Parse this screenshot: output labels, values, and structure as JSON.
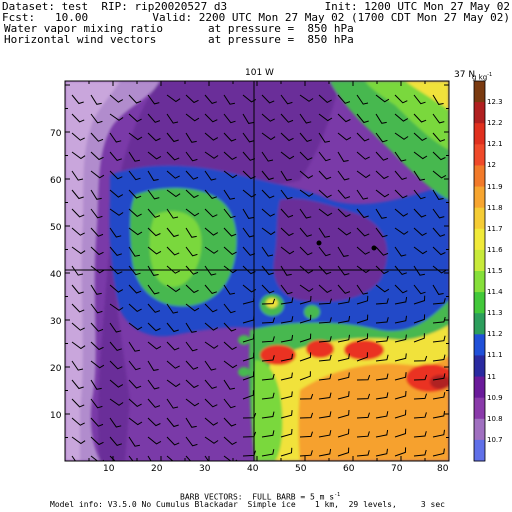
{
  "header": {
    "dataset": "Dataset: test  RIP: rip20020527 d3",
    "init": "Init: 1200 UTC Mon 27 May 02",
    "fcst": "Fcst:   10.00",
    "valid": "Valid: 2200 UTC Mon 27 May 02 (1700 CDT Mon 27 May 02)",
    "field1_name": "Water vapor mixing ratio",
    "field1_level": "at pressure =  850 hPa",
    "field2_name": "Horizontal wind vectors",
    "field2_level": "at pressure =  850 hPa"
  },
  "map": {
    "top_label_lon": "101 W",
    "right_label_lat": "37 N",
    "x_ticks": [
      "10",
      "20",
      "30",
      "40",
      "50",
      "60",
      "70",
      "80"
    ],
    "y_ticks": [
      "10",
      "20",
      "30",
      "40",
      "50",
      "60",
      "70"
    ]
  },
  "colorbar": {
    "unit": "g kg",
    "labels": [
      "12.3",
      "12.2",
      "12.1",
      "12",
      "11.9",
      "11.8",
      "11.7",
      "11.6",
      "11.5",
      "11.4",
      "11.3",
      "11.2",
      "11.1",
      "11",
      "10.9",
      "10.8",
      "10.7"
    ],
    "colors": [
      "#7a3a10",
      "#b02020",
      "#e0301e",
      "#f04a2a",
      "#f27a2a",
      "#f7a530",
      "#f5cc35",
      "#f1ea3a",
      "#c8ea3a",
      "#86df3a",
      "#42c83a",
      "#2c9e5c",
      "#2050d8",
      "#2a2aa0",
      "#6a1a9a",
      "#8a3aaa",
      "#a070c0",
      "#6070e8"
    ]
  },
  "footer": {
    "barb_note": "BARB VECTORS:  FULL BARB = 5 m s",
    "model_info": "Model info: V3.5.0 No Cumulus Blackadar  Simple ice    1 km,  29 levels,     3 sec"
  },
  "colors": {
    "lightviolet": "#b18ccd",
    "violet": "#8847b0",
    "purple": "#6a2d99",
    "blue": "#2448c8",
    "green": "#47b84f",
    "lightgreen": "#7ad83e",
    "yellow": "#f1e23a",
    "orange": "#f6a12d",
    "red": "#ea3224",
    "deepred": "#b02020"
  }
}
